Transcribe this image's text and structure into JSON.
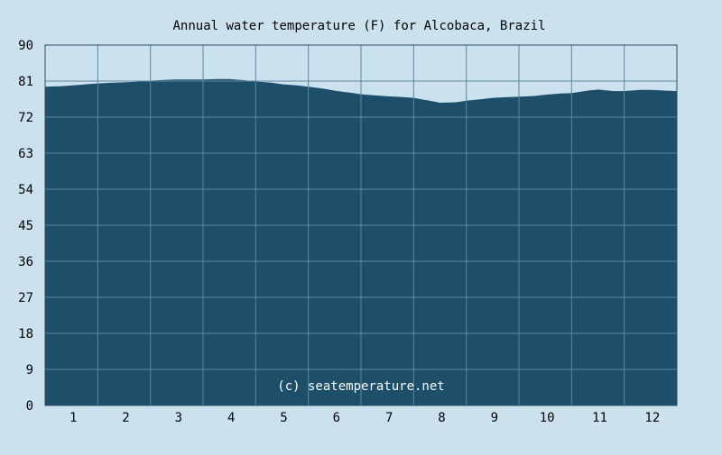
{
  "chart_data": {
    "type": "area",
    "title": "Annual water temperature (F) for Alcobaca, Brazil",
    "xlabel": "",
    "ylabel": "",
    "x_ticks": [
      "1",
      "2",
      "3",
      "4",
      "5",
      "6",
      "7",
      "8",
      "9",
      "10",
      "11",
      "12"
    ],
    "y_ticks": [
      "0",
      "9",
      "18",
      "27",
      "36",
      "45",
      "54",
      "63",
      "72",
      "81",
      "90"
    ],
    "xlim": [
      0.5,
      12.5
    ],
    "ylim": [
      0,
      90
    ],
    "grid": true,
    "legend": "none",
    "series": [
      {
        "x": [
          0.5,
          0.8,
          1.0,
          1.3,
          1.5,
          1.8,
          2.0,
          2.3,
          2.5,
          2.8,
          3.0,
          3.3,
          3.5,
          3.8,
          4.0,
          4.3,
          4.5,
          4.8,
          5.0,
          5.3,
          5.5,
          5.8,
          6.0,
          6.3,
          6.5,
          6.8,
          7.0,
          7.3,
          7.5,
          7.8,
          8.0,
          8.3,
          8.5,
          8.8,
          9.0,
          9.3,
          9.5,
          9.8,
          10.0,
          10.3,
          10.5,
          10.8,
          11.0,
          11.3,
          11.5,
          11.8,
          12.0,
          12.3,
          12.5
        ],
        "values": [
          79.6,
          79.7,
          79.9,
          80.2,
          80.4,
          80.6,
          80.7,
          80.9,
          81.1,
          81.3,
          81.4,
          81.4,
          81.4,
          81.5,
          81.5,
          81.2,
          80.9,
          80.6,
          80.2,
          79.9,
          79.6,
          79.1,
          78.6,
          78.1,
          77.7,
          77.4,
          77.2,
          77.0,
          76.8,
          76.1,
          75.6,
          75.7,
          76.1,
          76.5,
          76.8,
          77.0,
          77.1,
          77.3,
          77.6,
          77.9,
          78.0,
          78.6,
          78.9,
          78.5,
          78.5,
          78.8,
          78.8,
          78.6,
          78.5
        ]
      }
    ],
    "colors": {
      "background": "#cbe2ee",
      "plot_fill": "#1d4e6a",
      "plot_background": "#cbe2ee",
      "grid": "#5d87a0",
      "axis": "#2a4f66",
      "text": "#000000",
      "watermark": "#ffffff"
    },
    "watermark": "(c) seatemperature.net"
  }
}
